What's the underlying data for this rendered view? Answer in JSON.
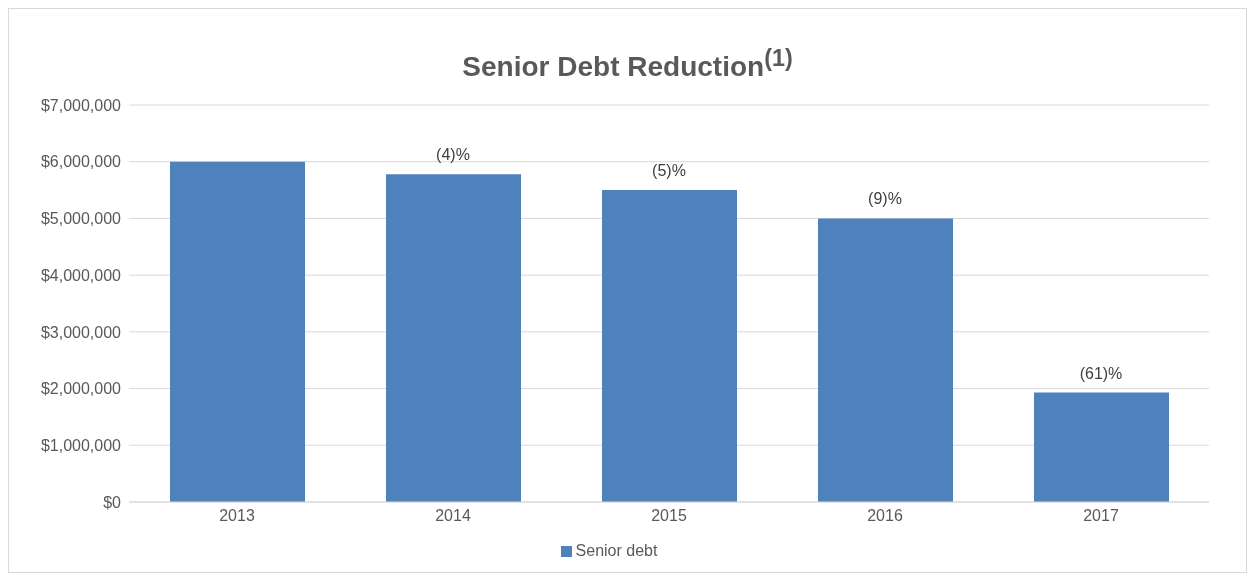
{
  "chart_data": {
    "type": "bar",
    "title": "Senior Debt Reduction$^{(1)}$",
    "categories": [
      "2013",
      "2014",
      "2015",
      "2016",
      "2017"
    ],
    "series": [
      {
        "name": "Senior debt",
        "color": "#4f81bd",
        "values": [
          6000000,
          5780000,
          5500000,
          5000000,
          1930000
        ]
      }
    ],
    "annotations": [
      {
        "text": "(4)%",
        "x": "2014",
        "y": 5780000
      },
      {
        "text": "(5)%",
        "x": "2015",
        "y": 5500000
      },
      {
        "text": "(9)%",
        "x": "2016",
        "y": 5000000
      },
      {
        "text": "(61)%",
        "x": "2017",
        "y": 1930000
      }
    ],
    "ylim": [
      0,
      7000000
    ],
    "yticks": [
      {
        "value": 0,
        "label": "$0"
      },
      {
        "value": 1000000,
        "label": "$1,000,000"
      },
      {
        "value": 2000000,
        "label": "$2,000,000"
      },
      {
        "value": 3000000,
        "label": "$3,000,000"
      },
      {
        "value": 4000000,
        "label": "$4,000,000"
      },
      {
        "value": 5000000,
        "label": "$5,000,000"
      },
      {
        "value": 6000000,
        "label": "$6,000,000"
      },
      {
        "value": 7000000,
        "label": "$7,000,000"
      }
    ],
    "grid": "y",
    "legend": "bottom"
  }
}
